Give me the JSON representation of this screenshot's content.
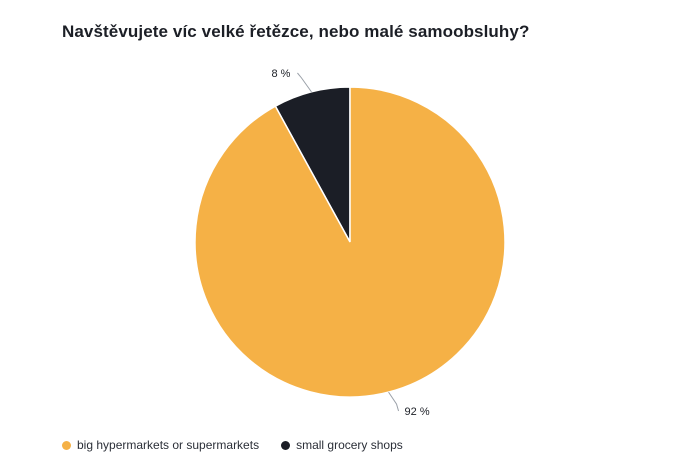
{
  "chart_data": {
    "type": "pie",
    "title": "Navštěvujete víc velké řetězce, nebo malé samoobsluhy?",
    "slices": [
      {
        "name": "small grocery shops",
        "value": 8,
        "label": "8 %",
        "color": "#1b1e26"
      },
      {
        "name": "big hypermarkets or supermarkets",
        "value": 92,
        "label": "92 %",
        "color": "#f5b146"
      }
    ],
    "legend": {
      "position": "bottom-left",
      "items": [
        {
          "label": "big hypermarkets or supermarkets",
          "color": "#f5b146"
        },
        {
          "label": "small grocery shops",
          "color": "#1b1e26"
        }
      ]
    }
  }
}
